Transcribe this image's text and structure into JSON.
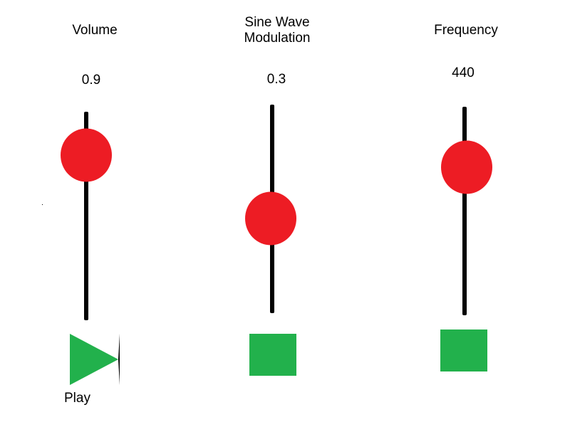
{
  "colors": {
    "track": "#000000",
    "knob": "#ed1c24",
    "accent": "#22b14c"
  },
  "sliders": {
    "volume": {
      "label": "Volume",
      "value": "0.9"
    },
    "modulation": {
      "label": "Sine Wave\nModulation",
      "value": "0.3"
    },
    "frequency": {
      "label": "Frequency",
      "value": "440"
    }
  },
  "controls": {
    "play_label": "Play",
    "play_icon": "play-icon",
    "stop_icon": "stop-icon"
  }
}
